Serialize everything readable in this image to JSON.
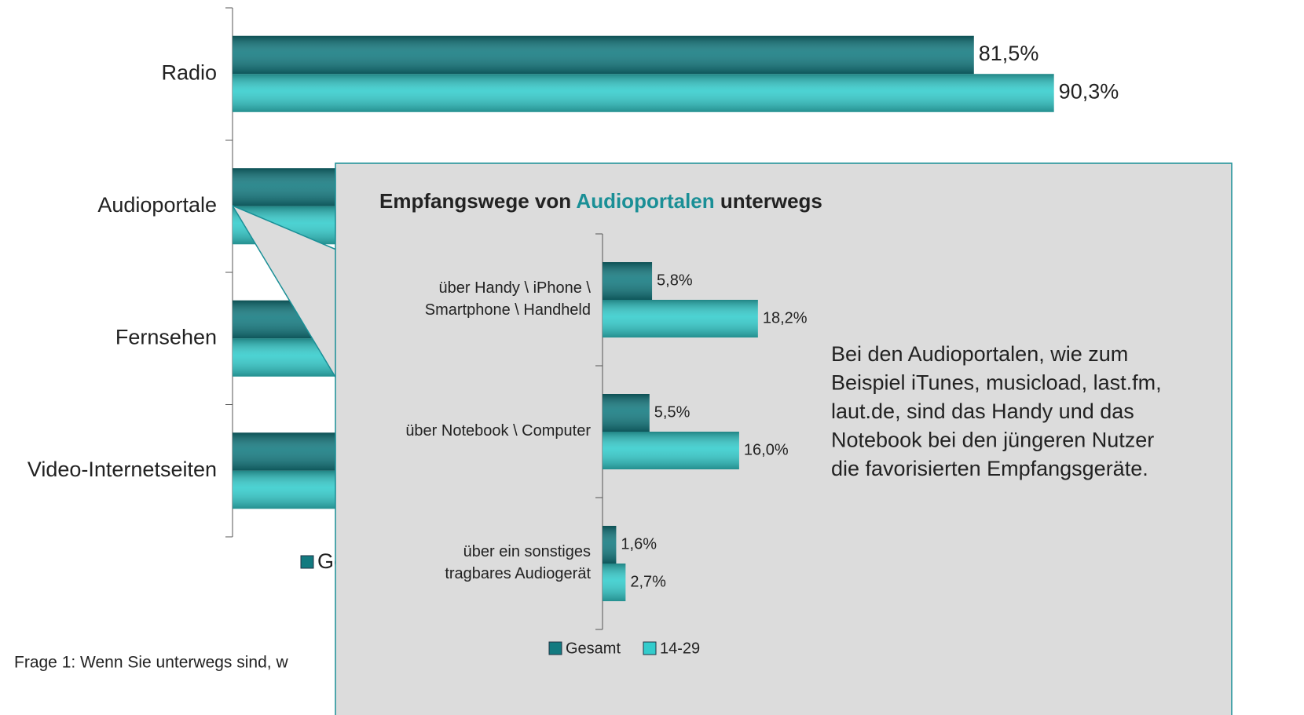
{
  "chart_data": [
    {
      "type": "bar",
      "orientation": "horizontal",
      "categories": [
        "Radio",
        "Audioportale",
        "Fernsehen",
        "Video-Internetseiten"
      ],
      "series": [
        {
          "name": "Gesamt",
          "color": "#137a80",
          "values": [
            81.5,
            20,
            22,
            25
          ],
          "value_labels": [
            "81,5%",
            null,
            null,
            null
          ]
        },
        {
          "name": "14-29",
          "color": "#33cccc",
          "values": [
            90.3,
            30,
            24,
            35
          ],
          "value_labels": [
            "90,3%",
            null,
            null,
            null
          ]
        }
      ],
      "xlim": [
        0,
        100
      ],
      "footnote": "Frage 1: Wenn Sie unterwegs sind, w"
    },
    {
      "type": "bar",
      "orientation": "horizontal",
      "title": [
        "Empfangswege von ",
        "Audioportalen",
        " unterwegs"
      ],
      "title_highlight_color": "#1a8f96",
      "categories": [
        "über Handy \\ iPhone \\\nSmartphone \\ Handheld",
        "über Notebook \\ Computer",
        "über ein sonstiges\ntragbares Audiogerät"
      ],
      "series": [
        {
          "name": "Gesamt",
          "color": "#137a80",
          "values": [
            5.8,
            5.5,
            1.6
          ],
          "value_labels": [
            "5,8%",
            "5,5%",
            "1,6%"
          ]
        },
        {
          "name": "14-29",
          "color": "#33cccc",
          "values": [
            18.2,
            16.0,
            2.7
          ],
          "value_labels": [
            "18,2%",
            "16,0%",
            "2,7%"
          ]
        }
      ],
      "xlim": [
        0,
        10
      ],
      "annotation": [
        "Bei den Audioportalen, wie zum",
        "Beispiel iTunes, musicload, last.fm,",
        "laut.de, sind das Handy und das",
        "Notebook bei den jüngeren Nutzer",
        "die favorisierten Empfangsgeräte."
      ]
    }
  ]
}
